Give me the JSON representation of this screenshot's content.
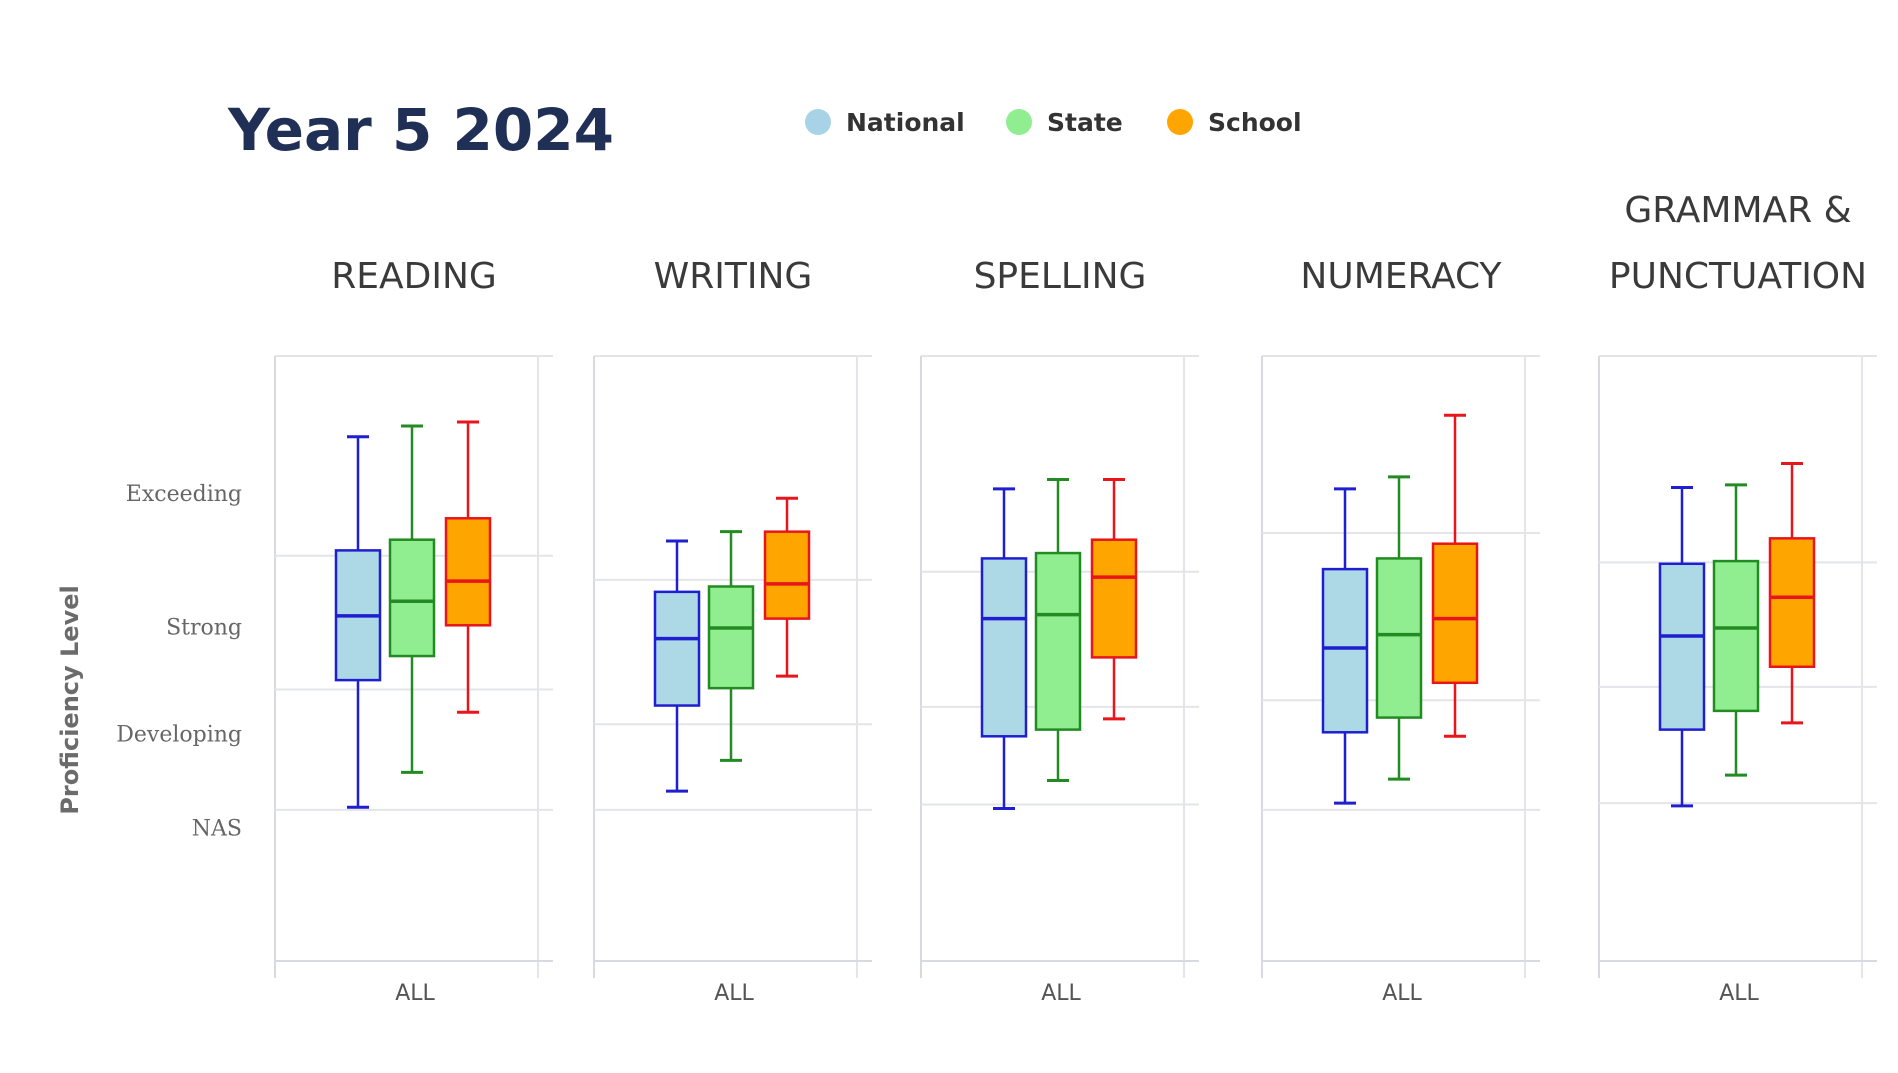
{
  "title": "Year 5  2024",
  "legend": [
    {
      "label": "National",
      "color": "#a8d3e6"
    },
    {
      "label": "State",
      "color": "#90ee90"
    },
    {
      "label": "School",
      "color": "#ffa500"
    }
  ],
  "colors": {
    "National": {
      "fill": "#add8e6",
      "stroke": "#1f1fd1"
    },
    "State": {
      "fill": "#90ee90",
      "stroke": "#228b22"
    },
    "School": {
      "fill": "#ffa500",
      "stroke": "#e8151b"
    }
  },
  "chart_data": {
    "type": "box",
    "ylabel": "Proficiency Level",
    "yticks": [
      "Exceeding",
      "Strong",
      "Developing",
      "NAS"
    ],
    "ylim": [
      0,
      4
    ],
    "series_names": [
      "National",
      "State",
      "School"
    ],
    "panels": [
      {
        "title": [
          "READING"
        ],
        "category": "ALL",
        "grid": [
          1.13,
          2.03,
          3.03
        ],
        "boxes": [
          {
            "series": "National",
            "min": 1.15,
            "q1": 2.1,
            "median": 2.58,
            "q3": 3.07,
            "max": 3.92
          },
          {
            "series": "State",
            "min": 1.41,
            "q1": 2.28,
            "median": 2.69,
            "q3": 3.15,
            "max": 4.0
          },
          {
            "series": "School",
            "min": 1.86,
            "q1": 2.51,
            "median": 2.84,
            "q3": 3.31,
            "max": 4.03
          }
        ]
      },
      {
        "title": [
          "WRITING"
        ],
        "category": "ALL",
        "grid": [
          1.13,
          1.77,
          2.85
        ],
        "boxes": [
          {
            "series": "National",
            "min": 1.27,
            "q1": 1.91,
            "median": 2.41,
            "q3": 2.76,
            "max": 3.14
          },
          {
            "series": "State",
            "min": 1.5,
            "q1": 2.04,
            "median": 2.49,
            "q3": 2.8,
            "max": 3.21
          },
          {
            "series": "School",
            "min": 2.13,
            "q1": 2.56,
            "median": 2.82,
            "q3": 3.21,
            "max": 3.46
          }
        ]
      },
      {
        "title": [
          "SPELLING"
        ],
        "category": "ALL",
        "grid": [
          1.17,
          1.9,
          2.91
        ],
        "boxes": [
          {
            "series": "National",
            "min": 1.14,
            "q1": 1.68,
            "median": 2.56,
            "q3": 3.01,
            "max": 3.53
          },
          {
            "series": "State",
            "min": 1.35,
            "q1": 1.73,
            "median": 2.59,
            "q3": 3.05,
            "max": 3.6
          },
          {
            "series": "School",
            "min": 1.81,
            "q1": 2.27,
            "median": 2.87,
            "q3": 3.15,
            "max": 3.6
          }
        ]
      },
      {
        "title": [
          "NUMERACY"
        ],
        "category": "ALL",
        "grid": [
          1.13,
          1.95,
          3.2
        ],
        "boxes": [
          {
            "series": "National",
            "min": 1.18,
            "q1": 1.71,
            "median": 2.34,
            "q3": 2.93,
            "max": 3.53
          },
          {
            "series": "State",
            "min": 1.36,
            "q1": 1.82,
            "median": 2.44,
            "q3": 3.01,
            "max": 3.62
          },
          {
            "series": "School",
            "min": 1.68,
            "q1": 2.08,
            "median": 2.56,
            "q3": 3.12,
            "max": 4.08
          }
        ]
      },
      {
        "title": [
          "GRAMMAR &",
          "PUNCTUATION"
        ],
        "category": "ALL",
        "grid": [
          1.18,
          2.05,
          2.98
        ],
        "boxes": [
          {
            "series": "National",
            "min": 1.16,
            "q1": 1.73,
            "median": 2.43,
            "q3": 2.97,
            "max": 3.54
          },
          {
            "series": "State",
            "min": 1.39,
            "q1": 1.87,
            "median": 2.49,
            "q3": 2.99,
            "max": 3.56
          },
          {
            "series": "School",
            "min": 1.78,
            "q1": 2.2,
            "median": 2.72,
            "q3": 3.16,
            "max": 3.72
          }
        ]
      }
    ]
  }
}
